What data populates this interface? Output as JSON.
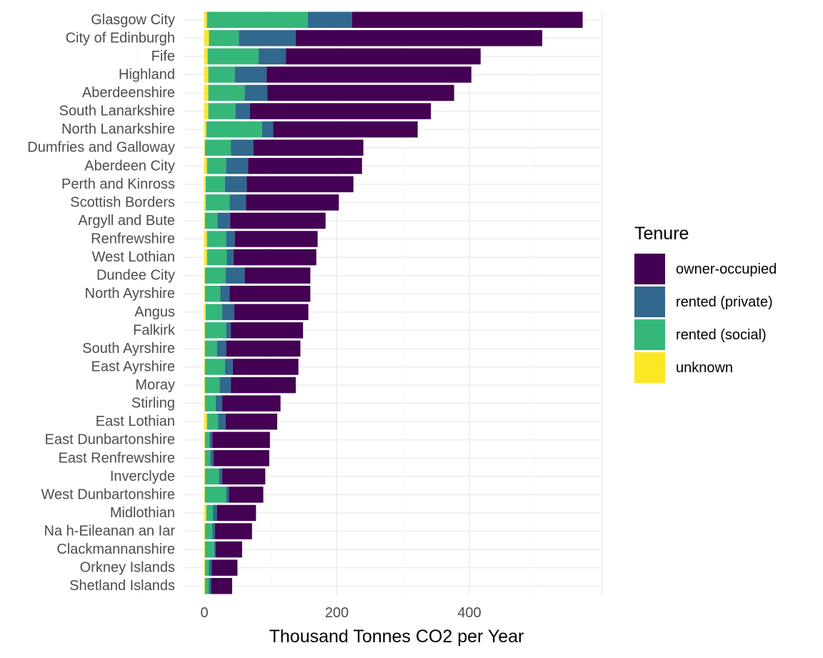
{
  "chart_data": {
    "type": "bar",
    "orientation": "horizontal",
    "stacked": true,
    "xlabel": "Thousand Tonnes CO2 per Year",
    "ylabel": "",
    "xlim": [
      0,
      600
    ],
    "x_ticks": [
      0,
      200,
      400
    ],
    "grid": true,
    "legend": {
      "title": "Tenure",
      "position": "right"
    },
    "categories": [
      "Glasgow City",
      "City of Edinburgh",
      "Fife",
      "Highland",
      "Aberdeenshire",
      "South Lanarkshire",
      "North Lanarkshire",
      "Dumfries and Galloway",
      "Aberdeen City",
      "Perth and Kinross",
      "Scottish Borders",
      "Argyll and Bute",
      "Renfrewshire",
      "West Lothian",
      "Dundee City",
      "North Ayrshire",
      "Angus",
      "Falkirk",
      "South Ayrshire",
      "East Ayrshire",
      "Moray",
      "Stirling",
      "East Lothian",
      "East Dunbartonshire",
      "East Renfrewshire",
      "Inverclyde",
      "West Dunbartonshire",
      "Midlothian",
      "Na h-Eileanan an Iar",
      "Clackmannanshire",
      "Orkney Islands",
      "Shetland Islands"
    ],
    "series": [
      {
        "name": "unknown",
        "color": "#FDE725",
        "values": [
          4,
          7,
          5,
          6,
          6,
          6,
          3,
          1,
          4,
          2,
          2,
          1,
          4,
          4,
          1,
          1,
          2,
          1,
          1,
          1,
          1,
          1,
          4,
          1,
          1,
          1,
          1,
          3,
          1,
          1,
          1,
          1
        ]
      },
      {
        "name": "rented (social)",
        "color": "#35B779",
        "values": [
          152,
          45,
          77,
          40,
          55,
          41,
          84,
          39,
          29,
          29,
          36,
          19,
          29,
          30,
          31,
          23,
          25,
          32,
          18,
          30,
          22,
          16,
          17,
          7,
          8,
          21,
          32,
          10,
          11,
          14,
          6,
          6
        ]
      },
      {
        "name": "rented (private)",
        "color": "#31688E",
        "values": [
          67,
          86,
          41,
          48,
          34,
          22,
          17,
          34,
          33,
          33,
          25,
          19,
          13,
          10,
          29,
          14,
          18,
          7,
          14,
          12,
          17,
          10,
          11,
          4,
          5,
          5,
          4,
          6,
          4,
          2,
          4,
          3
        ]
      },
      {
        "name": "owner-occupied",
        "color": "#440154",
        "values": [
          348,
          372,
          294,
          309,
          282,
          273,
          218,
          166,
          172,
          161,
          140,
          144,
          125,
          125,
          99,
          122,
          112,
          109,
          112,
          99,
          98,
          88,
          78,
          87,
          84,
          65,
          52,
          59,
          56,
          40,
          39,
          32
        ]
      }
    ]
  }
}
